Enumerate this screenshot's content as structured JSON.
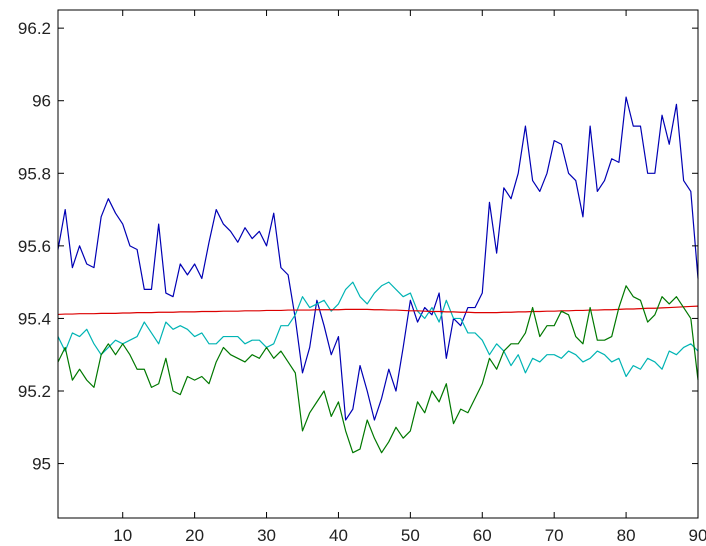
{
  "chart_data": {
    "type": "line",
    "title": "",
    "xlabel": "",
    "ylabel": "",
    "xlim": [
      1,
      90
    ],
    "ylim": [
      94.85,
      96.25
    ],
    "grid": false,
    "x_ticks": [
      10,
      20,
      30,
      40,
      50,
      60,
      70,
      80,
      90
    ],
    "x_tick_labels": [
      "10",
      "20",
      "30",
      "40",
      "50",
      "60",
      "70",
      "80",
      "90"
    ],
    "y_ticks": [
      95,
      95.2,
      95.4,
      95.6,
      95.8,
      96,
      96.2
    ],
    "y_tick_labels": [
      "95",
      "95.2",
      "95.4",
      "95.6",
      "95.8",
      "96",
      "96.2"
    ],
    "x": [
      1,
      2,
      3,
      4,
      5,
      6,
      7,
      8,
      9,
      10,
      11,
      12,
      13,
      14,
      15,
      16,
      17,
      18,
      19,
      20,
      21,
      22,
      23,
      24,
      25,
      26,
      27,
      28,
      29,
      30,
      31,
      32,
      33,
      34,
      35,
      36,
      37,
      38,
      39,
      40,
      41,
      42,
      43,
      44,
      45,
      46,
      47,
      48,
      49,
      50,
      51,
      52,
      53,
      54,
      55,
      56,
      57,
      58,
      59,
      60,
      61,
      62,
      63,
      64,
      65,
      66,
      67,
      68,
      69,
      70,
      71,
      72,
      73,
      74,
      75,
      76,
      77,
      78,
      79,
      80,
      81,
      82,
      83,
      84,
      85,
      86,
      87,
      88,
      89,
      90
    ],
    "series": [
      {
        "color": "#0000b4",
        "values": [
          95.59,
          95.7,
          95.54,
          95.6,
          95.55,
          95.54,
          95.68,
          95.73,
          95.69,
          95.66,
          95.6,
          95.59,
          95.48,
          95.48,
          95.66,
          95.47,
          95.46,
          95.55,
          95.52,
          95.55,
          95.51,
          95.61,
          95.7,
          95.66,
          95.64,
          95.61,
          95.65,
          95.62,
          95.64,
          95.6,
          95.69,
          95.54,
          95.52,
          95.4,
          95.25,
          95.32,
          95.45,
          95.38,
          95.3,
          95.35,
          95.12,
          95.15,
          95.27,
          95.2,
          95.12,
          95.18,
          95.26,
          95.2,
          95.32,
          95.45,
          95.39,
          95.43,
          95.41,
          95.47,
          95.29,
          95.4,
          95.38,
          95.43,
          95.43,
          95.47,
          95.72,
          95.58,
          95.76,
          95.73,
          95.8,
          95.93,
          95.78,
          95.75,
          95.8,
          95.89,
          95.88,
          95.8,
          95.78,
          95.68,
          95.93,
          95.75,
          95.78,
          95.84,
          95.83,
          96.01,
          95.93,
          95.93,
          95.8,
          95.8,
          95.96,
          95.88,
          95.99,
          95.78,
          95.75,
          95.51
        ]
      },
      {
        "color": "#00b4b4",
        "values": [
          95.35,
          95.31,
          95.36,
          95.35,
          95.37,
          95.33,
          95.3,
          95.32,
          95.34,
          95.33,
          95.34,
          95.35,
          95.39,
          95.36,
          95.33,
          95.39,
          95.37,
          95.38,
          95.37,
          95.35,
          95.36,
          95.33,
          95.33,
          95.35,
          95.35,
          95.35,
          95.33,
          95.34,
          95.34,
          95.32,
          95.33,
          95.38,
          95.38,
          95.41,
          95.46,
          95.43,
          95.44,
          95.45,
          95.42,
          95.44,
          95.48,
          95.5,
          95.46,
          95.44,
          95.47,
          95.49,
          95.5,
          95.48,
          95.46,
          95.47,
          95.42,
          95.4,
          95.43,
          95.39,
          95.45,
          95.4,
          95.4,
          95.36,
          95.36,
          95.34,
          95.3,
          95.33,
          95.31,
          95.27,
          95.3,
          95.25,
          95.29,
          95.28,
          95.3,
          95.3,
          95.29,
          95.31,
          95.3,
          95.28,
          95.29,
          95.31,
          95.3,
          95.28,
          95.29,
          95.24,
          95.27,
          95.26,
          95.29,
          95.28,
          95.26,
          95.31,
          95.3,
          95.32,
          95.33,
          95.31
        ]
      },
      {
        "color": "#dc0000",
        "values": [
          95.411,
          95.412,
          95.412,
          95.413,
          95.413,
          95.413,
          95.414,
          95.414,
          95.414,
          95.415,
          95.415,
          95.416,
          95.416,
          95.416,
          95.417,
          95.417,
          95.417,
          95.418,
          95.418,
          95.418,
          95.419,
          95.419,
          95.419,
          95.42,
          95.42,
          95.42,
          95.421,
          95.421,
          95.421,
          95.422,
          95.422,
          95.422,
          95.423,
          95.423,
          95.423,
          95.423,
          95.424,
          95.424,
          95.424,
          95.424,
          95.425,
          95.425,
          95.425,
          95.425,
          95.424,
          95.424,
          95.423,
          95.423,
          95.422,
          95.421,
          95.421,
          95.42,
          95.419,
          95.419,
          95.418,
          95.418,
          95.417,
          95.417,
          95.416,
          95.416,
          95.416,
          95.416,
          95.417,
          95.417,
          95.418,
          95.418,
          95.419,
          95.419,
          95.42,
          95.42,
          95.421,
          95.421,
          95.422,
          95.422,
          95.423,
          95.423,
          95.424,
          95.424,
          95.425,
          95.426,
          95.426,
          95.427,
          95.428,
          95.428,
          95.429,
          95.43,
          95.431,
          95.432,
          95.433,
          95.434
        ]
      },
      {
        "color": "#007800",
        "values": [
          95.28,
          95.32,
          95.23,
          95.26,
          95.23,
          95.21,
          95.3,
          95.33,
          95.3,
          95.33,
          95.3,
          95.26,
          95.26,
          95.21,
          95.22,
          95.29,
          95.2,
          95.19,
          95.24,
          95.23,
          95.24,
          95.22,
          95.28,
          95.32,
          95.3,
          95.29,
          95.28,
          95.3,
          95.29,
          95.32,
          95.29,
          95.31,
          95.28,
          95.25,
          95.09,
          95.14,
          95.17,
          95.2,
          95.13,
          95.17,
          95.09,
          95.03,
          95.04,
          95.12,
          95.07,
          95.03,
          95.06,
          95.1,
          95.07,
          95.09,
          95.17,
          95.14,
          95.2,
          95.17,
          95.22,
          95.11,
          95.15,
          95.14,
          95.18,
          95.22,
          95.29,
          95.26,
          95.31,
          95.33,
          95.33,
          95.36,
          95.43,
          95.35,
          95.38,
          95.38,
          95.42,
          95.41,
          95.35,
          95.33,
          95.43,
          95.34,
          95.34,
          95.35,
          95.43,
          95.49,
          95.46,
          95.45,
          95.39,
          95.41,
          95.46,
          95.44,
          95.46,
          95.43,
          95.4,
          95.23
        ]
      }
    ]
  }
}
